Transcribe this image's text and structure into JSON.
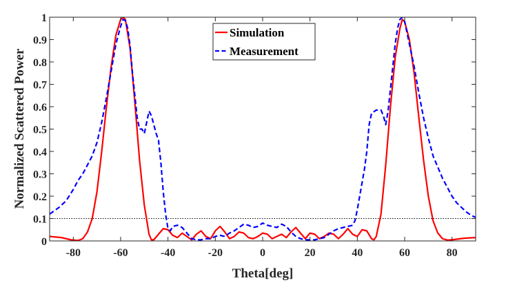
{
  "chart_data": {
    "type": "line",
    "title": "",
    "xlabel": "Theta[deg]",
    "ylabel": "Normalized Scattered Power",
    "xlim": [
      -90,
      90
    ],
    "ylim": [
      0,
      1
    ],
    "xticks": [
      -80,
      -60,
      -40,
      -20,
      0,
      20,
      40,
      60,
      80
    ],
    "xtick_labels": [
      "-80",
      "-60",
      "-40",
      "-20",
      "0",
      "20",
      "40",
      "60",
      "80"
    ],
    "yticks": [
      0,
      0.1,
      0.2,
      0.3,
      0.4,
      0.5,
      0.6,
      0.7,
      0.8,
      0.9,
      1
    ],
    "ytick_labels": [
      "0",
      "0.1",
      "0.2",
      "0.3",
      "0.4",
      "0.5",
      "0.6",
      "0.7",
      "0.8",
      "0.9",
      "1"
    ],
    "grid": false,
    "legend_position": "top-center",
    "reference_line": {
      "y": 0.1,
      "color": "#000000",
      "style": "dotted"
    },
    "series": [
      {
        "name": "Simulation",
        "color": "#ff0000",
        "style": "solid",
        "x": [
          -90,
          -85,
          -81,
          -78,
          -76,
          -74,
          -72,
          -70,
          -68,
          -66,
          -64,
          -62,
          -60,
          -59,
          -58,
          -56,
          -54,
          -52,
          -50,
          -48,
          -47,
          -46,
          -44,
          -42,
          -40,
          -38,
          -36,
          -34,
          -32,
          -30,
          -28,
          -26,
          -24,
          -22,
          -20,
          -18,
          -16,
          -14,
          -12,
          -10,
          -8,
          -6,
          -4,
          -2,
          0,
          2,
          4,
          6,
          8,
          10,
          12,
          14,
          16,
          18,
          20,
          22,
          24,
          26,
          28,
          30,
          32,
          34,
          36,
          38,
          40,
          42,
          44,
          46,
          47,
          48,
          50,
          52,
          54,
          56,
          58,
          59,
          60,
          62,
          64,
          66,
          68,
          70,
          72,
          74,
          76,
          78,
          80,
          85,
          90
        ],
        "values": [
          0.02,
          0.015,
          0.005,
          0.002,
          0.01,
          0.04,
          0.1,
          0.22,
          0.4,
          0.6,
          0.78,
          0.92,
          0.99,
          1.0,
          0.99,
          0.86,
          0.62,
          0.36,
          0.16,
          0.03,
          0.005,
          0.005,
          0.03,
          0.055,
          0.05,
          0.025,
          0.015,
          0.035,
          0.02,
          0.005,
          0.03,
          0.045,
          0.02,
          0.01,
          0.045,
          0.065,
          0.04,
          0.01,
          0.02,
          0.04,
          0.035,
          0.015,
          0.01,
          0.02,
          0.035,
          0.03,
          0.01,
          0.02,
          0.03,
          0.015,
          0.04,
          0.06,
          0.035,
          0.01,
          0.035,
          0.03,
          0.01,
          0.02,
          0.035,
          0.03,
          0.01,
          0.03,
          0.055,
          0.03,
          0.02,
          0.05,
          0.045,
          0.01,
          0.005,
          0.02,
          0.12,
          0.34,
          0.6,
          0.82,
          0.95,
          0.99,
          0.98,
          0.9,
          0.75,
          0.55,
          0.36,
          0.2,
          0.09,
          0.035,
          0.01,
          0.004,
          0.005,
          0.012,
          0.015
        ]
      },
      {
        "name": "Measurement",
        "color": "#0000ff",
        "style": "dashed",
        "x": [
          -90,
          -86,
          -83,
          -80,
          -78,
          -76,
          -74,
          -72,
          -70,
          -68,
          -66,
          -64,
          -62,
          -60,
          -59,
          -58,
          -57,
          -56,
          -55,
          -54,
          -53,
          -52,
          -51,
          -50,
          -49,
          -48,
          -47,
          -46,
          -45,
          -44,
          -43,
          -42,
          -41,
          -40,
          -39,
          -38,
          -36,
          -34,
          -32,
          -30,
          -28,
          -26,
          -24,
          -22,
          -20,
          -18,
          -16,
          -14,
          -12,
          -10,
          -8,
          -6,
          -4,
          -2,
          0,
          2,
          4,
          6,
          8,
          10,
          12,
          14,
          16,
          18,
          20,
          22,
          24,
          26,
          28,
          30,
          32,
          34,
          36,
          38,
          39,
          40,
          41,
          42,
          43,
          44,
          45,
          46,
          48,
          50,
          51,
          52,
          53,
          54,
          55,
          56,
          57,
          58,
          59,
          60,
          62,
          64,
          66,
          68,
          70,
          72,
          74,
          76,
          78,
          80,
          82,
          84,
          86,
          88,
          90
        ],
        "values": [
          0.12,
          0.15,
          0.18,
          0.23,
          0.27,
          0.3,
          0.34,
          0.38,
          0.44,
          0.53,
          0.64,
          0.76,
          0.88,
          0.96,
          0.99,
          0.985,
          0.95,
          0.87,
          0.75,
          0.65,
          0.55,
          0.5,
          0.5,
          0.48,
          0.53,
          0.58,
          0.56,
          0.52,
          0.48,
          0.45,
          0.35,
          0.22,
          0.12,
          0.055,
          0.045,
          0.065,
          0.07,
          0.06,
          0.035,
          0.01,
          0.005,
          0.005,
          0.01,
          0.01,
          0.02,
          0.025,
          0.02,
          0.035,
          0.045,
          0.06,
          0.075,
          0.07,
          0.06,
          0.065,
          0.08,
          0.07,
          0.065,
          0.06,
          0.075,
          0.065,
          0.04,
          0.02,
          0.01,
          0.005,
          0.005,
          0.005,
          0.01,
          0.015,
          0.03,
          0.045,
          0.055,
          0.06,
          0.065,
          0.07,
          0.09,
          0.14,
          0.2,
          0.26,
          0.32,
          0.4,
          0.52,
          0.57,
          0.585,
          0.585,
          0.56,
          0.52,
          0.58,
          0.68,
          0.78,
          0.88,
          0.95,
          0.99,
          1.0,
          0.98,
          0.88,
          0.78,
          0.66,
          0.55,
          0.46,
          0.38,
          0.33,
          0.28,
          0.24,
          0.2,
          0.17,
          0.15,
          0.13,
          0.115,
          0.105
        ]
      }
    ]
  }
}
